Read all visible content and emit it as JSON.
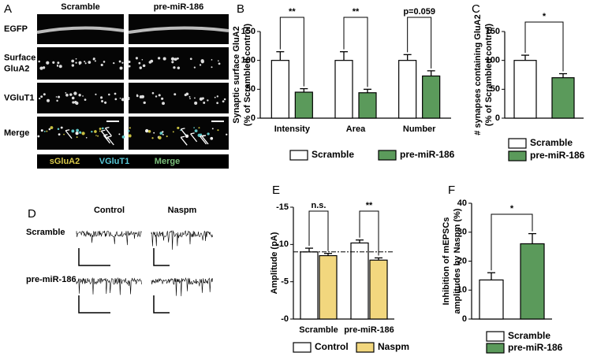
{
  "panel_a": {
    "label": "A",
    "columns": [
      "Scramble",
      "pre-miR-186"
    ],
    "rows": [
      "EGFP",
      [
        "Surface",
        "GluA2"
      ],
      "VGluT1",
      "Merge"
    ],
    "channels": [
      "sGluA2",
      "VGluT1",
      "Merge"
    ]
  },
  "panel_d": {
    "label": "D",
    "columns": [
      "Control",
      "Naspm"
    ],
    "rows": [
      "Scramble",
      "pre-miR-186"
    ]
  },
  "chart_data": [
    {
      "type": "bar",
      "label": "B",
      "ylabel": [
        "Synaptic surface GluA2",
        "(% of Scrambled control)"
      ],
      "categories": [
        "Intensity",
        "Area",
        "Number"
      ],
      "series": [
        {
          "name": "Scramble",
          "color": "#ffffff",
          "values": [
            100,
            100,
            100
          ],
          "errors": [
            15,
            15,
            10
          ]
        },
        {
          "name": "pre-miR-186",
          "color": "#5b9a5b",
          "values": [
            45,
            44,
            73
          ],
          "errors": [
            6,
            6,
            9
          ]
        }
      ],
      "annotations": [
        "**",
        "**",
        "p=0.059"
      ],
      "ylim": [
        0,
        150
      ],
      "yticks": [
        0,
        50,
        100,
        150
      ]
    },
    {
      "type": "bar",
      "label": "C",
      "ylabel": [
        "# synapses containing GluA2",
        "(% of Scrambled control)"
      ],
      "categories": [
        null
      ],
      "series": [
        {
          "name": "Scramble",
          "color": "#ffffff",
          "values": [
            100
          ],
          "errors": [
            9
          ]
        },
        {
          "name": "pre-miR-186",
          "color": "#5b9a5b",
          "values": [
            70
          ],
          "errors": [
            7
          ]
        }
      ],
      "annotations": [
        "*"
      ],
      "ylim": [
        0,
        150
      ],
      "yticks": [
        0,
        50,
        100,
        150
      ]
    },
    {
      "type": "bar",
      "label": "E",
      "ylabel": [
        "Amplitude (pA)"
      ],
      "categories": [
        "Scramble",
        "pre-miR-186"
      ],
      "series": [
        {
          "name": "Control",
          "color": "#ffffff",
          "values": [
            -9,
            -10.2
          ],
          "errors": [
            0.5,
            0.4
          ]
        },
        {
          "name": "Naspm",
          "color": "#f2d77e",
          "values": [
            -8.5,
            -7.9
          ],
          "errors": [
            0.3,
            0.3
          ]
        }
      ],
      "annotations": [
        "n.s.",
        "**"
      ],
      "reference_line": -9,
      "ylim": [
        0,
        -15
      ],
      "yticks": [
        {
          "value": 0,
          "label": "-0"
        },
        -5,
        -10,
        -15
      ]
    },
    {
      "type": "bar",
      "label": "F",
      "ylabel": [
        "Inhibition of mEPSCs",
        "amplitudes by Naspm (%)"
      ],
      "categories": [
        null
      ],
      "series": [
        {
          "name": "Scramble",
          "color": "#ffffff",
          "values": [
            13.5
          ],
          "errors": [
            2.5
          ]
        },
        {
          "name": "pre-miR-186",
          "color": "#5b9a5b",
          "values": [
            26
          ],
          "errors": [
            3.5
          ]
        }
      ],
      "annotations": [
        "*"
      ],
      "ylim": [
        0,
        40
      ],
      "yticks": [
        0,
        10,
        20,
        30,
        40
      ]
    }
  ]
}
